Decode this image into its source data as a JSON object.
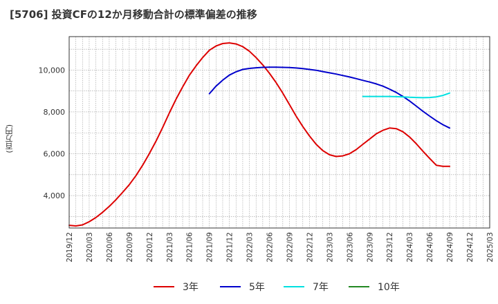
{
  "title": "[5706]  投資CFの12か月移動合計の標準偏差の推移",
  "chart_data": {
    "type": "line",
    "title": "[5706]  投資CFの12か月移動合計の標準偏差の推移",
    "ylabel": "(百万円)",
    "xlabel": "",
    "x_ticks": [
      "2019/12",
      "2020/03",
      "2020/06",
      "2020/09",
      "2020/12",
      "2021/03",
      "2021/06",
      "2021/09",
      "2021/12",
      "2022/03",
      "2022/06",
      "2022/09",
      "2022/12",
      "2023/03",
      "2023/06",
      "2023/09",
      "2023/12",
      "2024/03",
      "2024/06",
      "2024/09",
      "2024/12",
      "2025/03"
    ],
    "y_ticks": [
      4000,
      6000,
      8000,
      10000
    ],
    "y_tick_labels": [
      "4,000",
      "6,000",
      "8,000",
      "10,000"
    ],
    "ylim": [
      2450,
      11600
    ],
    "grid": true,
    "legend_position": "bottom",
    "series": [
      {
        "name": "3年",
        "color": "#dd0000",
        "x": [
          "2019/12",
          "2020/01",
          "2020/02",
          "2020/03",
          "2020/04",
          "2020/05",
          "2020/06",
          "2020/07",
          "2020/08",
          "2020/09",
          "2020/10",
          "2020/11",
          "2020/12",
          "2021/01",
          "2021/02",
          "2021/03",
          "2021/04",
          "2021/05",
          "2021/06",
          "2021/07",
          "2021/08",
          "2021/09",
          "2021/10",
          "2021/11",
          "2021/12",
          "2022/01",
          "2022/02",
          "2022/03",
          "2022/04",
          "2022/05",
          "2022/06",
          "2022/07",
          "2022/08",
          "2022/09",
          "2022/10",
          "2022/11",
          "2022/12",
          "2023/01",
          "2023/02",
          "2023/03",
          "2023/04",
          "2023/05",
          "2023/06",
          "2023/07",
          "2023/08",
          "2023/09",
          "2023/10",
          "2023/11",
          "2023/12",
          "2024/01",
          "2024/02",
          "2024/03",
          "2024/04",
          "2024/05",
          "2024/06",
          "2024/07",
          "2024/08",
          "2024/09"
        ],
        "values": [
          2580,
          2550,
          2600,
          2750,
          2950,
          3200,
          3480,
          3800,
          4150,
          4520,
          4950,
          5450,
          6000,
          6600,
          7250,
          7950,
          8600,
          9200,
          9750,
          10200,
          10600,
          10950,
          11150,
          11270,
          11300,
          11250,
          11120,
          10900,
          10600,
          10250,
          9850,
          9400,
          8900,
          8350,
          7800,
          7300,
          6850,
          6450,
          6150,
          5950,
          5870,
          5900,
          6000,
          6200,
          6450,
          6700,
          6950,
          7120,
          7230,
          7200,
          7050,
          6800,
          6480,
          6120,
          5780,
          5450,
          5400,
          5400
        ]
      },
      {
        "name": "5年",
        "color": "#0000cc",
        "x": [
          "2021/09",
          "2021/10",
          "2021/11",
          "2021/12",
          "2022/01",
          "2022/02",
          "2022/03",
          "2022/04",
          "2022/05",
          "2022/06",
          "2022/07",
          "2022/08",
          "2022/09",
          "2022/10",
          "2022/11",
          "2022/12",
          "2023/01",
          "2023/02",
          "2023/03",
          "2023/04",
          "2023/05",
          "2023/06",
          "2023/07",
          "2023/08",
          "2023/09",
          "2023/10",
          "2023/11",
          "2023/12",
          "2024/01",
          "2024/02",
          "2024/03",
          "2024/04",
          "2024/05",
          "2024/06",
          "2024/07",
          "2024/08",
          "2024/09"
        ],
        "values": [
          8870,
          9230,
          9520,
          9760,
          9920,
          10030,
          10080,
          10110,
          10130,
          10140,
          10140,
          10130,
          10120,
          10100,
          10070,
          10030,
          9990,
          9930,
          9870,
          9810,
          9740,
          9670,
          9590,
          9510,
          9430,
          9340,
          9230,
          9090,
          8930,
          8740,
          8520,
          8280,
          8030,
          7800,
          7580,
          7390,
          7230
        ]
      },
      {
        "name": "7年",
        "color": "#00e0e0",
        "x": [
          "2023/08",
          "2023/09",
          "2023/10",
          "2023/11",
          "2023/12",
          "2024/01",
          "2024/02",
          "2024/03",
          "2024/04",
          "2024/05",
          "2024/06",
          "2024/07",
          "2024/08",
          "2024/09"
        ],
        "values": [
          8740,
          8740,
          8740,
          8740,
          8740,
          8730,
          8720,
          8700,
          8690,
          8680,
          8690,
          8720,
          8790,
          8900
        ]
      },
      {
        "name": "10年",
        "color": "#228822",
        "x": [],
        "values": []
      }
    ]
  }
}
